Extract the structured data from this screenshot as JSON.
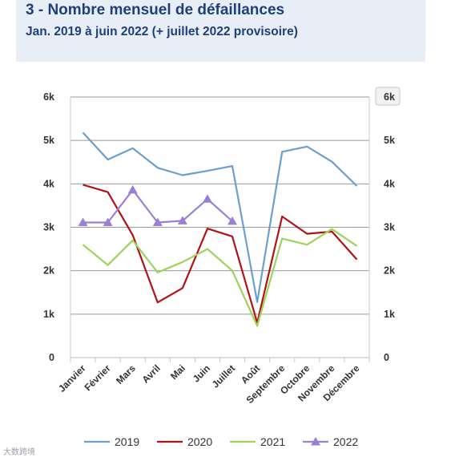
{
  "header": {
    "title": "3 - Nombre mensuel de défaillances",
    "subtitle": "Jan. 2019 à juin 2022 (+ juillet 2022 provisoire)"
  },
  "watermark": "大数跨境",
  "chart_data": {
    "type": "line",
    "categories": [
      "Janvier",
      "Février",
      "Mars",
      "Avril",
      "Mai",
      "Juin",
      "Juillet",
      "Août",
      "Septembre",
      "Octobre",
      "Novembre",
      "Décembre"
    ],
    "yticks": [
      "0",
      "1k",
      "2k",
      "3k",
      "4k",
      "5k",
      "6k"
    ],
    "ylim": [
      0,
      6000
    ],
    "grid": true,
    "legend_position": "bottom",
    "series": [
      {
        "name": "2019",
        "color": "#6a9fcf",
        "marker": "none",
        "values": [
          5180,
          4560,
          4820,
          4370,
          4200,
          4300,
          4410,
          1280,
          4740,
          4860,
          4510,
          3950
        ]
      },
      {
        "name": "2020",
        "color": "#b01217",
        "marker": "none",
        "values": [
          3980,
          3810,
          2820,
          1270,
          1600,
          2970,
          2790,
          800,
          3250,
          2850,
          2900,
          2260
        ]
      },
      {
        "name": "2021",
        "color": "#9cd35a",
        "marker": "none",
        "values": [
          2600,
          2130,
          2700,
          1960,
          2200,
          2500,
          2000,
          730,
          2740,
          2600,
          2960,
          2570
        ]
      },
      {
        "name": "2022",
        "color": "#9b7fd4",
        "marker": "triangle",
        "values": [
          3110,
          3110,
          3860,
          3110,
          3150,
          3650,
          3140,
          null,
          null,
          null,
          null,
          null
        ]
      }
    ]
  }
}
